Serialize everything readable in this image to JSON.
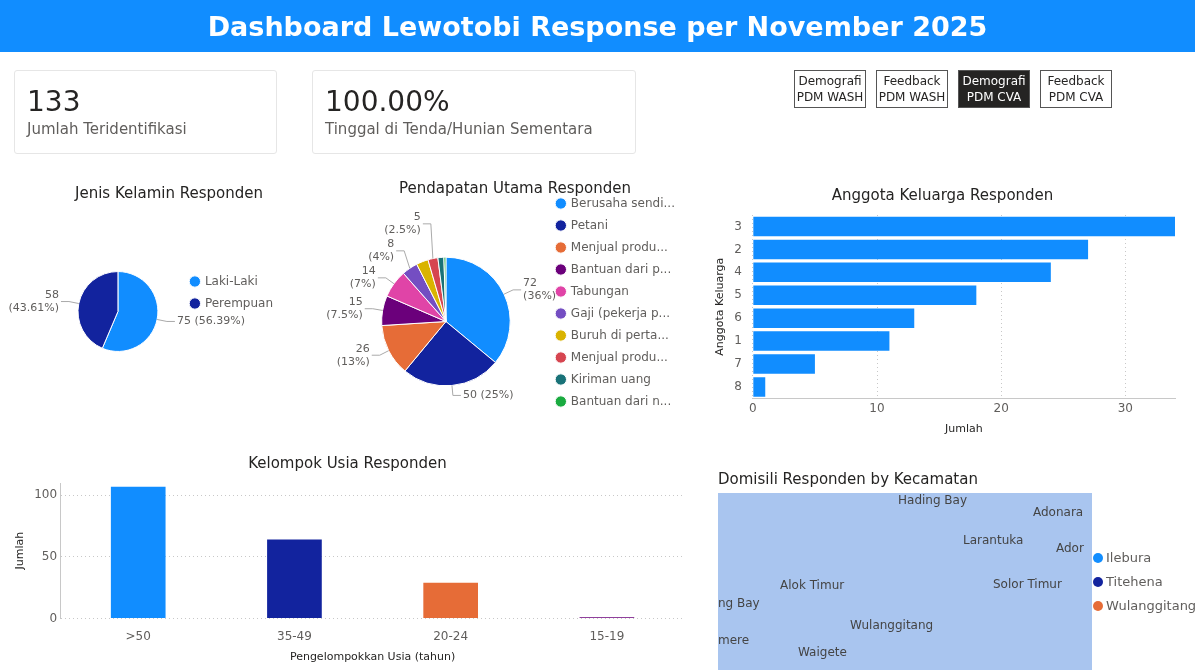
{
  "chart_data": [
    {
      "type": "other",
      "title": "Dashboard Lewotobi Response per November 2025",
      "categories": [
        "Jumlah Teridentifikasi",
        "Tinggal di Tenda/Hunian Sementara"
      ],
      "values": [
        133,
        100.0
      ],
      "value_labels": [
        "133",
        "100.00%"
      ],
      "annotations": [
        "Demografi PDM WASH",
        "Feedback PDM WASH",
        "Demografi PDM CVA",
        "Feedback PDM CVA"
      ]
    },
    {
      "type": "pie",
      "title": "Jenis Kelamin Responden",
      "categories": [
        "Laki-Laki",
        "Perempuan"
      ],
      "values": [
        75,
        58
      ],
      "colors": [
        "#118dff",
        "#12239e"
      ],
      "value_labels": [
        "75 (56.39%)",
        "58 (43.61%)"
      ],
      "legend": "right"
    },
    {
      "type": "pie",
      "title": "Pendapatan Utama Responden",
      "categories": [
        "Berusaha sendi...",
        "Petani",
        "Menjual produ...",
        "Bantuan dari p...",
        "Tabungan",
        "Gaji (pekerja p...",
        "Buruh di perta...",
        "Menjual produ...",
        "Kiriman uang",
        "Bantuan dari n..."
      ],
      "values": [
        72,
        50,
        26,
        15,
        14,
        8,
        6,
        5,
        3,
        1
      ],
      "colors": [
        "#118dff",
        "#12239e",
        "#e66c37",
        "#6b007b",
        "#e044a7",
        "#744ec2",
        "#d9b300",
        "#d64550",
        "#197278",
        "#1aab40"
      ],
      "value_labels": [
        "72 (36%)",
        "50 (25%)",
        "26 (13%)",
        "15 (7.5%)",
        "14 (7%)",
        "8 (4%)",
        null,
        "5 (2.5%)",
        null,
        null
      ],
      "legend": "right"
    },
    {
      "type": "bar",
      "orientation": "horizontal",
      "title": "Anggota Keluarga Responden",
      "xlabel": "Jumlah",
      "ylabel": "Anggota Keluarga",
      "categories": [
        "3",
        "2",
        "4",
        "5",
        "6",
        "1",
        "7",
        "8"
      ],
      "values": [
        34,
        27,
        24,
        18,
        13,
        11,
        5,
        1
      ],
      "color": "#118dff",
      "xlim": [
        0,
        34
      ],
      "xticks": [
        0,
        10,
        20,
        30
      ],
      "grid": "x",
      "legend": false
    },
    {
      "type": "bar",
      "title": "Kelompok Usia Responden",
      "xlabel": "Pengelompokkan Usia (tahun)",
      "ylabel": "Jumlah",
      "categories": [
        ">50",
        "35-49",
        "20-24",
        "15-19"
      ],
      "values": [
        107,
        64,
        29,
        1
      ],
      "colors": [
        "#118dff",
        "#12239e",
        "#e66c37",
        "#6b007b"
      ],
      "ylim": [
        0,
        110
      ],
      "yticks": [
        0,
        50,
        100
      ],
      "grid": "y",
      "legend": false
    },
    {
      "type": "other",
      "title": "Domisili Responden by Kecamatan",
      "categories": [
        "Ilebura",
        "Titehena",
        "Wulanggitang"
      ],
      "colors": [
        "#118dff",
        "#12239e",
        "#e66c37"
      ],
      "annotations": [
        "Hading Bay",
        "Larantuka",
        "Adonara",
        "Ador",
        "Alok Timur",
        "Solor Timur",
        "ng Bay",
        "Wulanggitang",
        "mere",
        "Waigete"
      ]
    }
  ]
}
